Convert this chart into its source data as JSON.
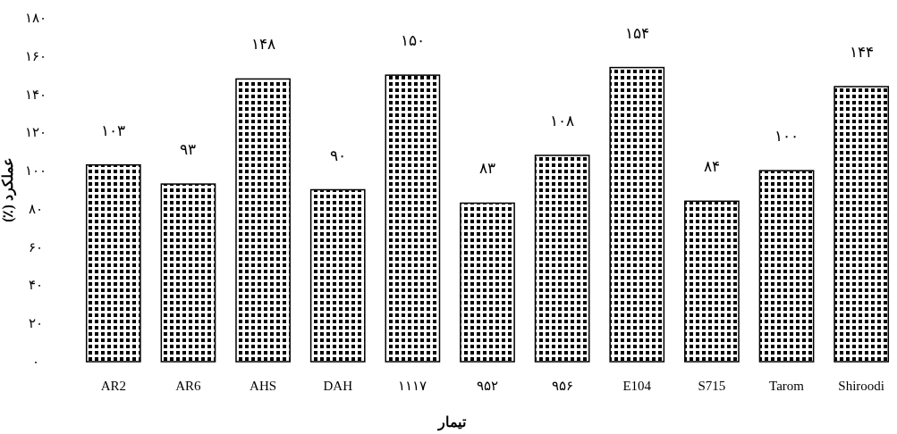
{
  "chart_data": {
    "type": "bar",
    "xlabel": "تیمار",
    "ylabel": "عملکرد (٪)",
    "categories": [
      "AR2",
      "AR6",
      "AHS",
      "DAH",
      "۱۱۱۷",
      "۹۵۲",
      "۹۵۶",
      "E104",
      "S715",
      "Tarom",
      "Shiroodi"
    ],
    "values": [
      103,
      93,
      148,
      90,
      150,
      83,
      108,
      154,
      84,
      100,
      144
    ],
    "value_labels": [
      "۱۰۳",
      "۹۳",
      "۱۴۸",
      "۹۰",
      "۱۵۰",
      "۸۳",
      "۱۰۸",
      "۱۵۴",
      "۸۴",
      "۱۰۰",
      "۱۴۴"
    ],
    "color": "#000000",
    "ylim": [
      0,
      180
    ],
    "yticks": [
      {
        "value": 0,
        "label": "۰"
      },
      {
        "value": 20,
        "label": "۲۰"
      },
      {
        "value": 40,
        "label": "۴۰"
      },
      {
        "value": 60,
        "label": "۶۰"
      },
      {
        "value": 80,
        "label": "۸۰"
      },
      {
        "value": 100,
        "label": "۱۰۰"
      },
      {
        "value": 120,
        "label": "۱۲۰"
      },
      {
        "value": 140,
        "label": "۱۴۰"
      },
      {
        "value": 160,
        "label": "۱۶۰"
      },
      {
        "value": 180,
        "label": "۱۸۰"
      }
    ]
  }
}
